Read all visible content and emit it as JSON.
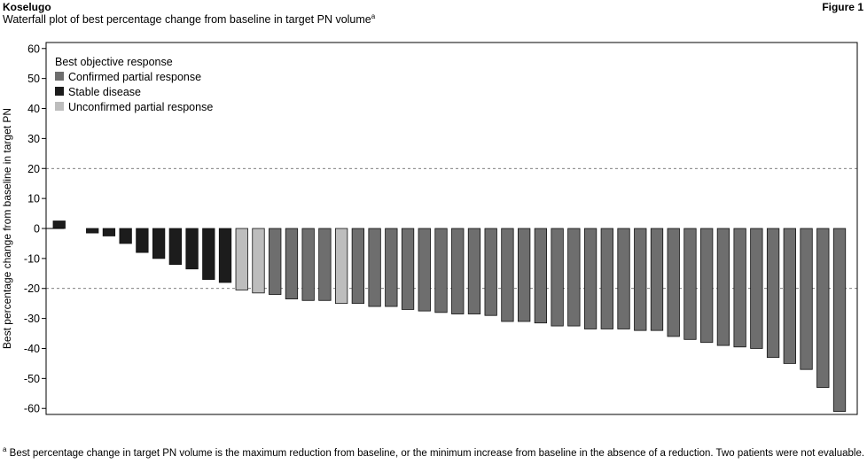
{
  "header": {
    "brand": "Koselugo",
    "figure_label": "Figure 1",
    "subtitle": "Waterfall plot of best percentage change from baseline in target PN volume",
    "subtitle_marker": "a"
  },
  "footnote": {
    "marker": "a",
    "text": " Best percentage change in target PN volume is the maximum reduction from baseline, or the minimum increase from baseline in the absence of a reduction. Two patients were not evaluable."
  },
  "chart_data": {
    "type": "bar",
    "title": "",
    "xlabel": "",
    "ylabel": "Best percentage change from baseline in target PN",
    "ylim": [
      -62,
      62
    ],
    "yticks": [
      60,
      50,
      40,
      30,
      20,
      10,
      0,
      -10,
      -20,
      -30,
      -40,
      -50,
      -60
    ],
    "reference_lines": [
      20,
      -20
    ],
    "legend": {
      "title": "Best objective response",
      "placement": "top-left",
      "entries": [
        {
          "name": "Confirmed partial response",
          "key": "cpr",
          "color": "#6e6e6e"
        },
        {
          "name": "Stable disease",
          "key": "sd",
          "color": "#1c1c1c"
        },
        {
          "name": "Unconfirmed partial response",
          "key": "upr",
          "color": "#bdbdbd"
        }
      ]
    },
    "values": [
      2.5,
      0,
      -1.5,
      -2.5,
      -5,
      -8,
      -10,
      -12,
      -13.5,
      -17,
      -18,
      -20.5,
      -21.5,
      -22,
      -23.5,
      -24,
      -24,
      -25,
      -25,
      -26,
      -26,
      -27,
      -27.5,
      -28,
      -28.5,
      -28.5,
      -29,
      -31,
      -31,
      -31.5,
      -32.5,
      -32.5,
      -33.5,
      -33.5,
      -33.5,
      -34,
      -34,
      -36,
      -37,
      -38,
      -39,
      -39.5,
      -40,
      -43,
      -45,
      -47,
      -53,
      -61
    ],
    "responses": [
      "sd",
      "none",
      "sd",
      "sd",
      "sd",
      "sd",
      "sd",
      "sd",
      "sd",
      "sd",
      "sd",
      "upr",
      "upr",
      "cpr",
      "cpr",
      "cpr",
      "cpr",
      "upr",
      "cpr",
      "cpr",
      "cpr",
      "cpr",
      "cpr",
      "cpr",
      "cpr",
      "cpr",
      "cpr",
      "cpr",
      "cpr",
      "cpr",
      "cpr",
      "cpr",
      "cpr",
      "cpr",
      "cpr",
      "cpr",
      "cpr",
      "cpr",
      "cpr",
      "cpr",
      "cpr",
      "cpr",
      "cpr",
      "cpr",
      "cpr",
      "cpr",
      "cpr",
      "cpr"
    ]
  }
}
